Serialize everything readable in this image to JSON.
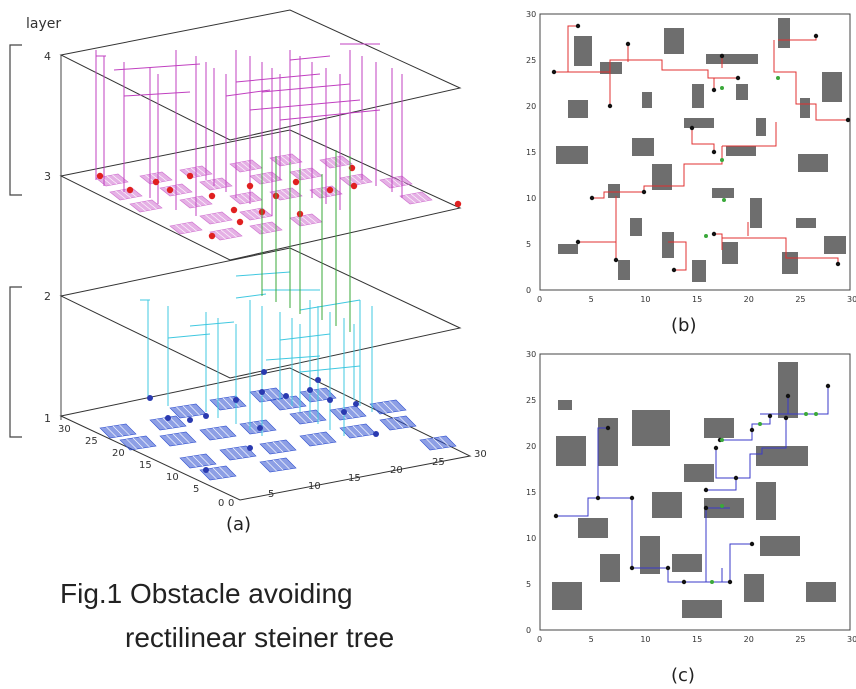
{
  "figure": {
    "caption_line1": "Fig.1  Obstacle avoiding",
    "caption_line2": "rectilinear steiner tree"
  },
  "panel_a": {
    "label": "(a)",
    "axis_title": "layer",
    "layer_ticks": [
      "1",
      "2",
      "3",
      "4"
    ],
    "depth_ticks": [
      "30",
      "25",
      "20",
      "15",
      "10",
      "5",
      "0"
    ],
    "width_ticks": [
      "0",
      "5",
      "10",
      "15",
      "20",
      "25",
      "30"
    ]
  },
  "panel_b": {
    "label": "(b)",
    "x_ticks": [
      "0",
      "5",
      "10",
      "15",
      "20",
      "25",
      "30"
    ],
    "y_ticks": [
      "0",
      "5",
      "10",
      "15",
      "20",
      "25",
      "30"
    ]
  },
  "panel_c": {
    "label": "(c)",
    "x_ticks": [
      "0",
      "5",
      "10",
      "15",
      "20",
      "25",
      "30"
    ],
    "y_ticks": [
      "0",
      "5",
      "10",
      "15",
      "20",
      "25",
      "30"
    ]
  },
  "colors": {
    "red_net": "#e03030",
    "blue_net": "#3a3ac8",
    "obstacle": "#6e6e6e",
    "steiner": "#3aa83a",
    "magenta": "#c040c0",
    "cyan": "#40c8e0",
    "pad_pink": "#d070d0",
    "pad_blue": "#3050d0"
  }
}
